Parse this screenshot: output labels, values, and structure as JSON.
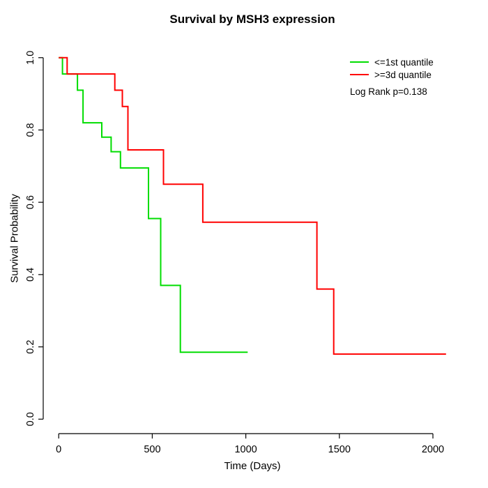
{
  "page": {
    "background": "#ffffff"
  },
  "chart_data": {
    "type": "line",
    "subtype": "kaplan-meier-step",
    "title": "Survival by MSH3 expression",
    "xlabel": "Time (Days)",
    "ylabel": "Survival Probability",
    "xlim": [
      0,
      2070
    ],
    "ylim": [
      0.0,
      1.0
    ],
    "x_ticks": [
      0,
      500,
      1000,
      1500,
      2000
    ],
    "y_ticks": [
      0.0,
      0.2,
      0.4,
      0.6,
      0.8,
      1.0
    ],
    "grid": false,
    "legend_position": "top-right-inside",
    "annotation": "Log Rank p=0.138",
    "axis_color": "#000000",
    "series": [
      {
        "name": "<=1st quantile",
        "color": "#00dd00",
        "x": [
          0,
          20,
          100,
          130,
          230,
          280,
          330,
          480,
          545,
          650,
          1010
        ],
        "y": [
          1.0,
          0.955,
          0.91,
          0.82,
          0.78,
          0.74,
          0.695,
          0.555,
          0.37,
          0.185,
          0.185
        ]
      },
      {
        "name": ">=3d quantile",
        "color": "#ff0000",
        "x": [
          0,
          45,
          300,
          340,
          370,
          560,
          770,
          1380,
          1470,
          2070
        ],
        "y": [
          1.0,
          0.955,
          0.91,
          0.865,
          0.745,
          0.65,
          0.545,
          0.36,
          0.18,
          0.18
        ]
      }
    ]
  }
}
